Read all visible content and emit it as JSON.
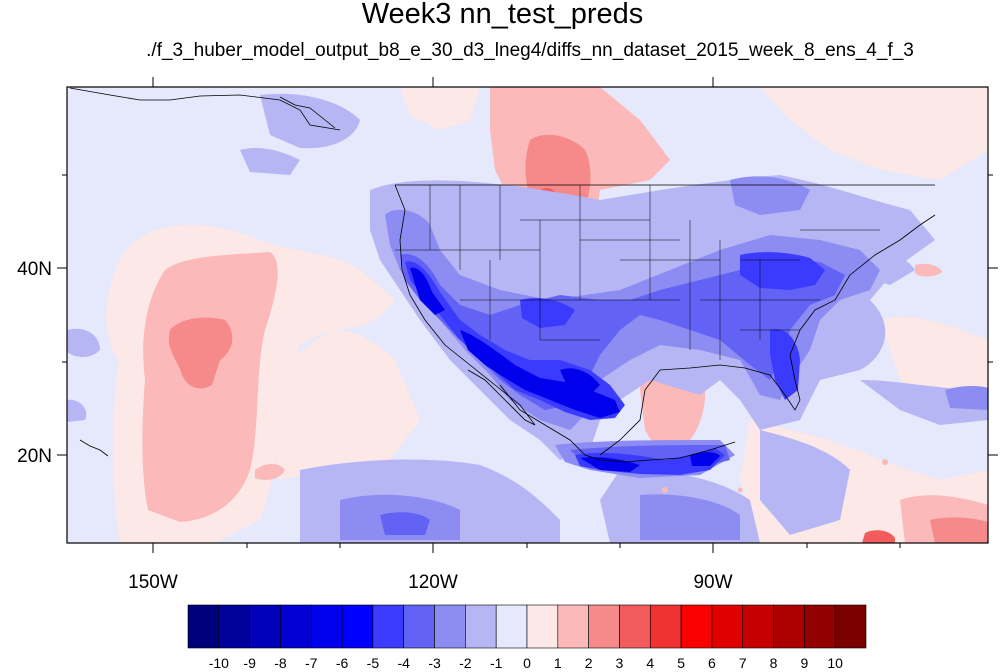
{
  "title": "Week3 nn_test_preds",
  "subtitle": "./f_3_huber_model_output_b8_e_30_d3_lneg4/diffs_nn_dataset_2015_week_8_ens_4_f_3",
  "axes": {
    "lon_labels": [
      "150W",
      "120W",
      "90W"
    ],
    "lat_labels": [
      "40N",
      "20N"
    ]
  },
  "colorbar": {
    "labels": [
      "-10",
      "-9",
      "-8",
      "-7",
      "-6",
      "-5",
      "-4",
      "-3",
      "-2",
      "-1",
      "0",
      "1",
      "2",
      "3",
      "4",
      "5",
      "6",
      "7",
      "8",
      "9",
      "10"
    ],
    "colors": [
      "#00007a",
      "#00009a",
      "#0000b8",
      "#0000d4",
      "#0000ec",
      "#0000ff",
      "#3b3bff",
      "#6262f5",
      "#8c8cf2",
      "#b6b6f5",
      "#e6e8fb",
      "#fde8e8",
      "#fbb9b9",
      "#f68a8a",
      "#f25c5c",
      "#f03232",
      "#fb0000",
      "#e00000",
      "#c60000",
      "#ac0000",
      "#920000",
      "#7a0000"
    ]
  },
  "map_colors": {
    "background": "#e6e8fb",
    "light_red": "#fde8e8",
    "pink": "#fbb9b9",
    "red": "#f68a8a",
    "dark_red": "#f25c5c",
    "light_blue": "#b6b6f5",
    "mid_blue": "#8c8cf2",
    "blue": "#6262f5",
    "strong_blue": "#3b3bff",
    "deep_blue": "#0000ec"
  }
}
